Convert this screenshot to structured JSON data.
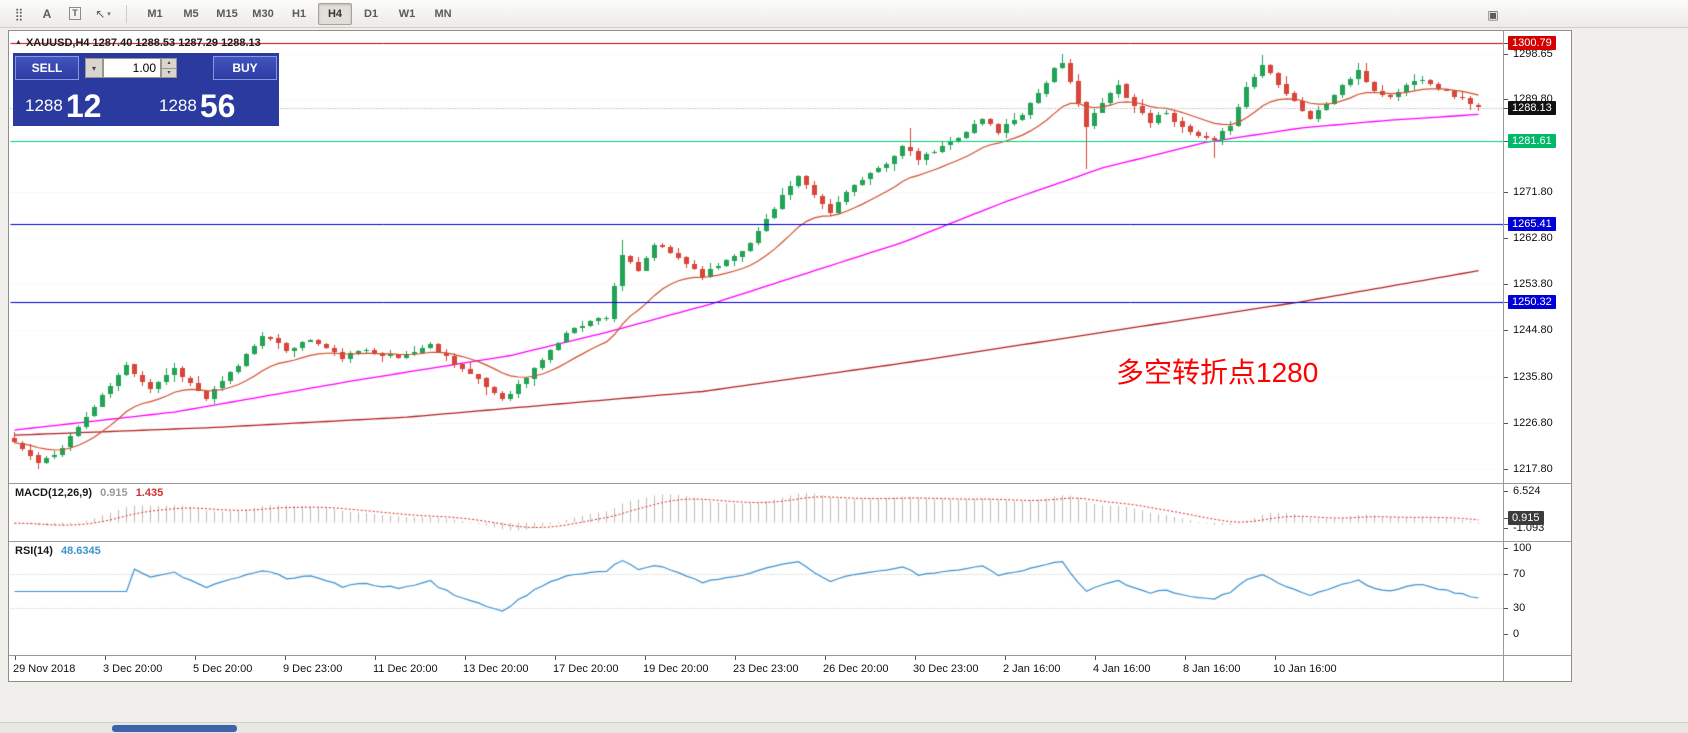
{
  "toolbar": {
    "icons": [
      {
        "name": "grid-icon",
        "glyph": "⣿"
      },
      {
        "name": "text-a-icon",
        "glyph": "A",
        "bold": true
      },
      {
        "name": "text-label-icon",
        "glyph": "T",
        "boxed": true
      },
      {
        "name": "cursor-style-icon",
        "glyph": "↖",
        "caret": "▾"
      }
    ],
    "timeframes": [
      {
        "label": "M1"
      },
      {
        "label": "M5"
      },
      {
        "label": "M15"
      },
      {
        "label": "M30"
      },
      {
        "label": "H1"
      },
      {
        "label": "H4",
        "active": true
      },
      {
        "label": "D1"
      },
      {
        "label": "W1"
      },
      {
        "label": "MN"
      }
    ],
    "right_icon": {
      "name": "chart-window-icon",
      "glyph": "▣"
    }
  },
  "chart_header": {
    "marker": "▲",
    "text": "XAUUSD,H4 1287.40 1288.53 1287.29 1288.13"
  },
  "trade_panel": {
    "sell_label": "SELL",
    "buy_label": "BUY",
    "lot": "1.00",
    "dropdown_glyph": "▾",
    "spin_up": "▴",
    "spin_down": "▾",
    "sell_price": {
      "main": "1288",
      "big": "12"
    },
    "buy_price": {
      "main": "1288",
      "big": "56"
    }
  },
  "chart_data": {
    "type": "candlestick",
    "symbol": "XAUUSD",
    "timeframe": "H4",
    "ohlc": {
      "open": 1287.4,
      "high": 1288.53,
      "low": 1287.29,
      "close": 1288.13
    },
    "bid": 1288.13,
    "price_panel": {
      "ylim": [
        1215.1,
        1302.65
      ]
    },
    "scale_labels": [
      {
        "v": 1298.65,
        "t": "1298.65"
      },
      {
        "v": 1289.8,
        "t": "1289.80"
      },
      {
        "v": 1271.8,
        "t": "1271.80"
      },
      {
        "v": 1262.8,
        "t": "1262.80"
      },
      {
        "v": 1253.8,
        "t": "1253.80"
      },
      {
        "v": 1244.8,
        "t": "1244.80"
      },
      {
        "v": 1235.8,
        "t": "1235.80"
      },
      {
        "v": 1226.8,
        "t": "1226.80"
      },
      {
        "v": 1217.8,
        "t": "1217.80"
      }
    ],
    "scale_boxes": [
      {
        "v": 1300.79,
        "t": "1300.79",
        "bg": "#d40000"
      },
      {
        "v": 1288.13,
        "t": "1288.13",
        "bg": "#111111"
      },
      {
        "v": 1281.61,
        "t": "1281.61",
        "bg": "#00b868"
      },
      {
        "v": 1265.41,
        "t": "1265.41",
        "bg": "#0000d6"
      },
      {
        "v": 1250.32,
        "t": "1250.32",
        "bg": "#0000d6"
      }
    ],
    "levels": [
      {
        "v": 1300.79,
        "color": "#cc0000"
      },
      {
        "v": 1281.61,
        "color": "#00cf75"
      },
      {
        "v": 1265.41,
        "color": "#0000e0"
      },
      {
        "v": 1250.32,
        "color": "#0000e0"
      }
    ],
    "candles": {
      "count": 184,
      "seed": 11,
      "noise": 0.85,
      "wick": 1.6,
      "close_waypoints": [
        [
          0,
          1223
        ],
        [
          3,
          1219
        ],
        [
          5,
          1220.5
        ],
        [
          8,
          1226
        ],
        [
          12,
          1234
        ],
        [
          14,
          1238
        ],
        [
          17,
          1233.5
        ],
        [
          20,
          1237.5
        ],
        [
          24,
          1231.5
        ],
        [
          28,
          1238
        ],
        [
          31,
          1244
        ],
        [
          34,
          1241
        ],
        [
          37,
          1243
        ],
        [
          41,
          1239.5
        ],
        [
          44,
          1241
        ],
        [
          48,
          1239.5
        ],
        [
          52,
          1242
        ],
        [
          55,
          1238.5
        ],
        [
          58,
          1235
        ],
        [
          61,
          1231.5
        ],
        [
          64,
          1235.5
        ],
        [
          67,
          1241
        ],
        [
          70,
          1245.5
        ],
        [
          74,
          1247.5
        ],
        [
          76,
          1259.5
        ],
        [
          78,
          1256
        ],
        [
          80,
          1261.5
        ],
        [
          83,
          1259
        ],
        [
          86,
          1255.5
        ],
        [
          89,
          1258.5
        ],
        [
          92,
          1261.5
        ],
        [
          94,
          1266.5
        ],
        [
          96,
          1271
        ],
        [
          98,
          1274.5
        ],
        [
          100,
          1271
        ],
        [
          102,
          1267.5
        ],
        [
          104,
          1272
        ],
        [
          107,
          1275
        ],
        [
          109,
          1277.5
        ],
        [
          111,
          1280.5
        ],
        [
          113,
          1278
        ],
        [
          116,
          1280.5
        ],
        [
          119,
          1283.5
        ],
        [
          121,
          1286
        ],
        [
          123,
          1283.5
        ],
        [
          126,
          1287
        ],
        [
          128,
          1291
        ],
        [
          130,
          1295.5
        ],
        [
          131,
          1296.5
        ],
        [
          133,
          1289.5
        ],
        [
          134,
          1284.5
        ],
        [
          136,
          1289
        ],
        [
          138,
          1292.5
        ],
        [
          140,
          1288.5
        ],
        [
          142,
          1285.5
        ],
        [
          144,
          1287.5
        ],
        [
          146,
          1284
        ],
        [
          148,
          1282.5
        ],
        [
          150,
          1281.5
        ],
        [
          152,
          1285
        ],
        [
          154,
          1292
        ],
        [
          156,
          1296.5
        ],
        [
          158,
          1293
        ],
        [
          160,
          1289.5
        ],
        [
          162,
          1286
        ],
        [
          164,
          1289
        ],
        [
          166,
          1292.5
        ],
        [
          168,
          1295
        ],
        [
          170,
          1291.5
        ],
        [
          172,
          1290
        ],
        [
          174,
          1292.5
        ],
        [
          176,
          1294
        ],
        [
          178,
          1292
        ],
        [
          180,
          1290.5
        ],
        [
          182,
          1289
        ],
        [
          183,
          1288.1
        ]
      ],
      "wick_overrides": {
        "3": {
          "low": 1217.8
        },
        "76": {
          "high": 1262.3
        },
        "112": {
          "high": 1284.2
        },
        "131": {
          "high": 1298.6
        },
        "134": {
          "low": 1276.2
        },
        "150": {
          "low": 1278.4
        },
        "156": {
          "high": 1298.4
        },
        "168": {
          "high": 1296.8
        }
      },
      "up_color": "#22a355",
      "down_color": "#d8453a"
    },
    "moving_averages": {
      "fast": {
        "period": 14,
        "color": "#d0512f"
      },
      "mid": {
        "color": "#ff00ff",
        "waypoints": [
          [
            0,
            1225.5
          ],
          [
            20,
            1229
          ],
          [
            42,
            1235
          ],
          [
            62,
            1240
          ],
          [
            74,
            1244.5
          ],
          [
            87,
            1250
          ],
          [
            99,
            1256
          ],
          [
            111,
            1262
          ],
          [
            124,
            1270
          ],
          [
            136,
            1276.5
          ],
          [
            149,
            1281.5
          ],
          [
            161,
            1284.3
          ],
          [
            172,
            1285.8
          ],
          [
            183,
            1286.9
          ]
        ]
      },
      "slow": {
        "color": "#b22222",
        "waypoints": [
          [
            0,
            1224.5
          ],
          [
            25,
            1226
          ],
          [
            49,
            1228
          ],
          [
            86,
            1233
          ],
          [
            111,
            1238.5
          ],
          [
            136,
            1244.5
          ],
          [
            161,
            1250.5
          ],
          [
            183,
            1256.5
          ]
        ]
      }
    },
    "macd": {
      "fast": 12,
      "slow": 26,
      "signal_period": 9,
      "hist_color": "#bdbdbd",
      "signal_color": "#dd2b2b",
      "axis": {
        "labels": [
          {
            "v": 6.524,
            "t": "6.524"
          },
          {
            "v": -1.093,
            "t": "-1.093"
          }
        ],
        "box": {
          "v": 0.915,
          "t": "0.915",
          "bg": "#3c3c3c"
        }
      }
    },
    "rsi": {
      "period": 14,
      "color": "#3e92cf",
      "axis": [
        {
          "v": 100,
          "t": "100"
        },
        {
          "v": 70,
          "t": "70"
        },
        {
          "v": 30,
          "t": "30"
        },
        {
          "v": 0,
          "t": "0"
        }
      ],
      "level_lines": [
        70,
        30
      ]
    },
    "x_labels": [
      "29 Nov 2018",
      "3 Dec 20:00",
      "5 Dec 20:00",
      "9 Dec 23:00",
      "11 Dec 20:00",
      "13 Dec 20:00",
      "17 Dec 20:00",
      "19 Dec 20:00",
      "23 Dec 23:00",
      "26 Dec 20:00",
      "30 Dec 23:00",
      "2 Jan 16:00",
      "4 Jan 16:00",
      "8 Jan 16:00",
      "10 Jan 16:00"
    ],
    "annotation": {
      "text": "多空转折点1280",
      "color": "#ff0000"
    }
  },
  "macd_label": {
    "title": "MACD(12,26,9)",
    "value": "0.915",
    "signal": "1.435",
    "value_color": "#9a9a9a",
    "signal_color": "#d33030"
  },
  "rsi_label": {
    "title": "RSI(14)",
    "value": "48.6345",
    "value_color": "#3e92cf"
  }
}
